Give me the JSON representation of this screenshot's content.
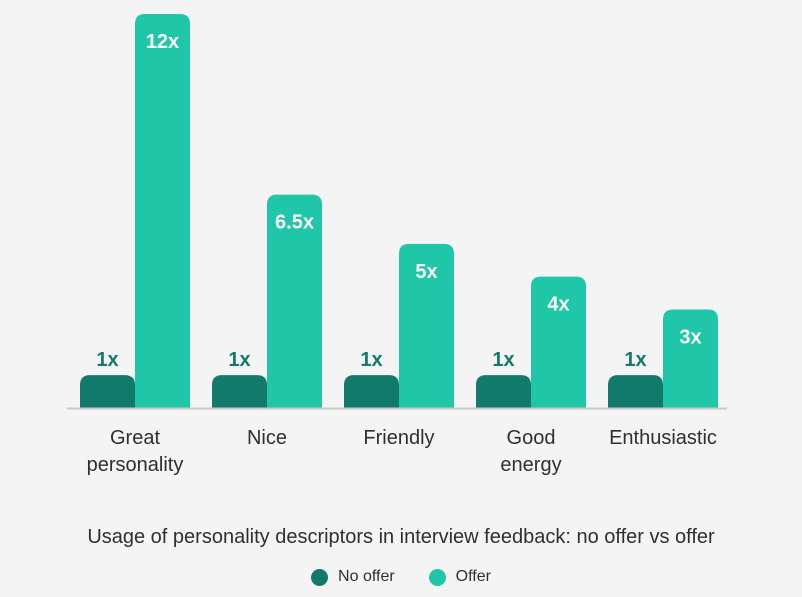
{
  "colors": {
    "no_offer": "#127a6a",
    "offer": "#1fc6a8",
    "axis": "#c9c9c9",
    "category_text": "#2f2f2f",
    "no_offer_label": "#127a6a",
    "offer_label": "#ffffff"
  },
  "chart_data": {
    "type": "bar",
    "title": "Usage of personality descriptors in interview feedback: no offer vs offer",
    "categories": [
      [
        "Great",
        "personality"
      ],
      [
        "Nice"
      ],
      [
        "Friendly"
      ],
      [
        "Good",
        "energy"
      ],
      [
        "Enthusiastic"
      ]
    ],
    "series": [
      {
        "name": "No offer",
        "values": [
          1,
          1,
          1,
          1,
          1
        ],
        "labels": [
          "1x",
          "1x",
          "1x",
          "1x",
          "1x"
        ]
      },
      {
        "name": "Offer",
        "values": [
          12,
          6.5,
          5,
          4,
          3
        ],
        "labels": [
          "12x",
          "6.5x",
          "5x",
          "4x",
          "3x"
        ]
      }
    ],
    "ylim": [
      0,
      12
    ],
    "grid": false,
    "legend_position": "bottom-center"
  }
}
